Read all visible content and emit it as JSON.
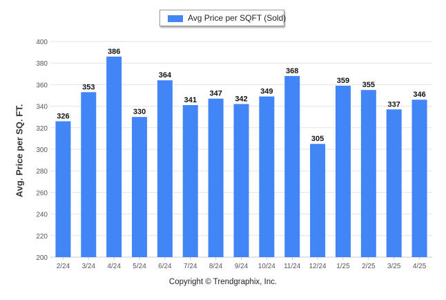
{
  "legend": {
    "label": "Avg Price per SQFT (Sold)",
    "color": "#4285f4"
  },
  "footer": {
    "copyright": "Copyright © Trendgraphix, Inc."
  },
  "chart_data": {
    "type": "bar",
    "categories": [
      "2/24",
      "3/24",
      "4/24",
      "5/24",
      "6/24",
      "7/24",
      "8/24",
      "9/24",
      "10/24",
      "11/24",
      "12/24",
      "1/25",
      "2/25",
      "3/25",
      "4/25"
    ],
    "series": [
      {
        "name": "Avg Price per SQFT (Sold)",
        "values": [
          326,
          353,
          386,
          330,
          364,
          341,
          347,
          342,
          349,
          368,
          305,
          359,
          355,
          337,
          346
        ],
        "color": "#4285f4"
      }
    ],
    "ylabel": "Avg. Price per SQ. FT.",
    "xlabel": "",
    "ylim": [
      200,
      400
    ],
    "yticks": [
      200,
      220,
      240,
      260,
      280,
      300,
      320,
      340,
      360,
      380,
      400
    ],
    "grid": true,
    "legend_position": "top-center",
    "data_labels": true
  }
}
